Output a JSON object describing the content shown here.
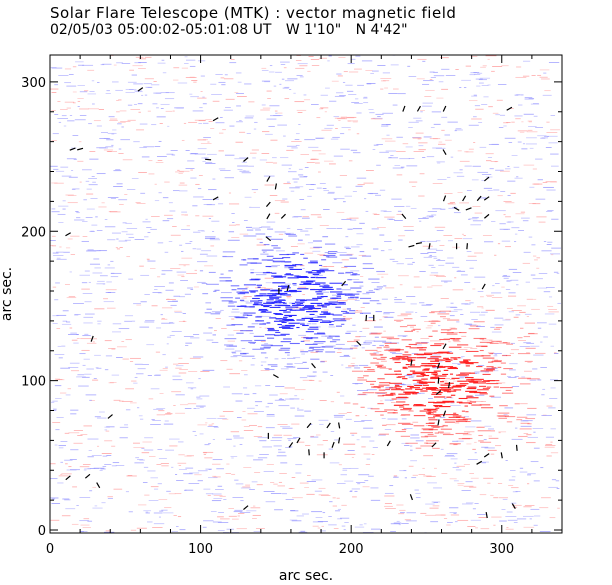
{
  "chart_data": {
    "type": "heatmap",
    "title": "Solar Flare Telescope (MTK) : vector magnetic field",
    "subtitle": {
      "datetime": "02/05/03  05:00:02-05:01:08 UT",
      "longitude": "W 1'10\"",
      "latitude": "N 4'42\""
    },
    "xlabel": "arc sec.",
    "ylabel": "arc sec.",
    "xlim": [
      0,
      340
    ],
    "ylim": [
      -2,
      318
    ],
    "xticks": [
      0,
      100,
      200,
      300
    ],
    "yticks": [
      0,
      100,
      200,
      300
    ],
    "grid": false,
    "field_components": [
      {
        "name": "positive polarity",
        "color": "#ff2020",
        "center": [
          255,
          100
        ],
        "radius": [
          40,
          30
        ],
        "strength": 1.0
      },
      {
        "name": "negative polarity",
        "color": "#2a2aff",
        "center": [
          160,
          155
        ],
        "radius": [
          40,
          32
        ],
        "strength": 1.0
      }
    ],
    "background_noise_colors": {
      "positive": "#ff9090",
      "negative": "#8a8aff"
    },
    "vector_color": "#000000",
    "vectors": [
      {
        "x": 60,
        "y": 295,
        "angle": 35
      },
      {
        "x": 110,
        "y": 275,
        "angle": 30
      },
      {
        "x": 15,
        "y": 255,
        "angle": 20
      },
      {
        "x": 20,
        "y": 255,
        "angle": 15
      },
      {
        "x": 105,
        "y": 248,
        "angle": -5
      },
      {
        "x": 130,
        "y": 248,
        "angle": 40
      },
      {
        "x": 145,
        "y": 235,
        "angle": 60
      },
      {
        "x": 150,
        "y": 230,
        "angle": 80
      },
      {
        "x": 145,
        "y": 218,
        "angle": 50
      },
      {
        "x": 110,
        "y": 222,
        "angle": 30
      },
      {
        "x": 155,
        "y": 210,
        "angle": 45
      },
      {
        "x": 145,
        "y": 210,
        "angle": 60
      },
      {
        "x": 12,
        "y": 198,
        "angle": 30
      },
      {
        "x": 145,
        "y": 195,
        "angle": -40
      },
      {
        "x": 235,
        "y": 282,
        "angle": 70
      },
      {
        "x": 245,
        "y": 282,
        "angle": 60
      },
      {
        "x": 262,
        "y": 282,
        "angle": 65
      },
      {
        "x": 305,
        "y": 282,
        "angle": 30
      },
      {
        "x": 262,
        "y": 253,
        "angle": -60
      },
      {
        "x": 290,
        "y": 235,
        "angle": 40
      },
      {
        "x": 262,
        "y": 222,
        "angle": 70
      },
      {
        "x": 275,
        "y": 222,
        "angle": 60
      },
      {
        "x": 285,
        "y": 222,
        "angle": 50
      },
      {
        "x": 290,
        "y": 222,
        "angle": 35
      },
      {
        "x": 278,
        "y": 215,
        "angle": 20
      },
      {
        "x": 270,
        "y": 215,
        "angle": -30
      },
      {
        "x": 290,
        "y": 210,
        "angle": 40
      },
      {
        "x": 235,
        "y": 210,
        "angle": -50
      },
      {
        "x": 240,
        "y": 190,
        "angle": 15
      },
      {
        "x": 245,
        "y": 192,
        "angle": 10
      },
      {
        "x": 252,
        "y": 190,
        "angle": 80
      },
      {
        "x": 270,
        "y": 190,
        "angle": 90
      },
      {
        "x": 277,
        "y": 190,
        "angle": 85
      },
      {
        "x": 288,
        "y": 163,
        "angle": 60
      },
      {
        "x": 195,
        "y": 165,
        "angle": 50
      },
      {
        "x": 152,
        "y": 160,
        "angle": 90
      },
      {
        "x": 158,
        "y": 162,
        "angle": 75
      },
      {
        "x": 210,
        "y": 142,
        "angle": 85
      },
      {
        "x": 215,
        "y": 142,
        "angle": 90
      },
      {
        "x": 205,
        "y": 125,
        "angle": -45
      },
      {
        "x": 262,
        "y": 123,
        "angle": 60
      },
      {
        "x": 240,
        "y": 112,
        "angle": 80
      },
      {
        "x": 258,
        "y": 110,
        "angle": 70
      },
      {
        "x": 258,
        "y": 100,
        "angle": 85
      },
      {
        "x": 265,
        "y": 97,
        "angle": 80
      },
      {
        "x": 258,
        "y": 92,
        "angle": 40
      },
      {
        "x": 262,
        "y": 78,
        "angle": 70
      },
      {
        "x": 258,
        "y": 72,
        "angle": 80
      },
      {
        "x": 150,
        "y": 103,
        "angle": -30
      },
      {
        "x": 175,
        "y": 110,
        "angle": -50
      },
      {
        "x": 28,
        "y": 128,
        "angle": 70
      },
      {
        "x": 40,
        "y": 76,
        "angle": 40
      },
      {
        "x": 172,
        "y": 70,
        "angle": 50
      },
      {
        "x": 185,
        "y": 70,
        "angle": 55
      },
      {
        "x": 192,
        "y": 70,
        "angle": -80
      },
      {
        "x": 192,
        "y": 60,
        "angle": 80
      },
      {
        "x": 188,
        "y": 57,
        "angle": 70
      },
      {
        "x": 165,
        "y": 60,
        "angle": 60
      },
      {
        "x": 160,
        "y": 57,
        "angle": 55
      },
      {
        "x": 145,
        "y": 63,
        "angle": -90
      },
      {
        "x": 172,
        "y": 52,
        "angle": -85
      },
      {
        "x": 182,
        "y": 50,
        "angle": -90
      },
      {
        "x": 225,
        "y": 58,
        "angle": 60
      },
      {
        "x": 255,
        "y": 57,
        "angle": 45
      },
      {
        "x": 310,
        "y": 55,
        "angle": -85
      },
      {
        "x": 290,
        "y": 50,
        "angle": 35
      },
      {
        "x": 300,
        "y": 50,
        "angle": -80
      },
      {
        "x": 285,
        "y": 45,
        "angle": 30
      },
      {
        "x": 12,
        "y": 35,
        "angle": 40
      },
      {
        "x": 25,
        "y": 36,
        "angle": 40
      },
      {
        "x": 32,
        "y": 30,
        "angle": -60
      },
      {
        "x": 130,
        "y": 15,
        "angle": 40
      },
      {
        "x": 240,
        "y": 22,
        "angle": -70
      },
      {
        "x": 290,
        "y": 10,
        "angle": -80
      },
      {
        "x": 308,
        "y": 16,
        "angle": -60
      }
    ]
  }
}
